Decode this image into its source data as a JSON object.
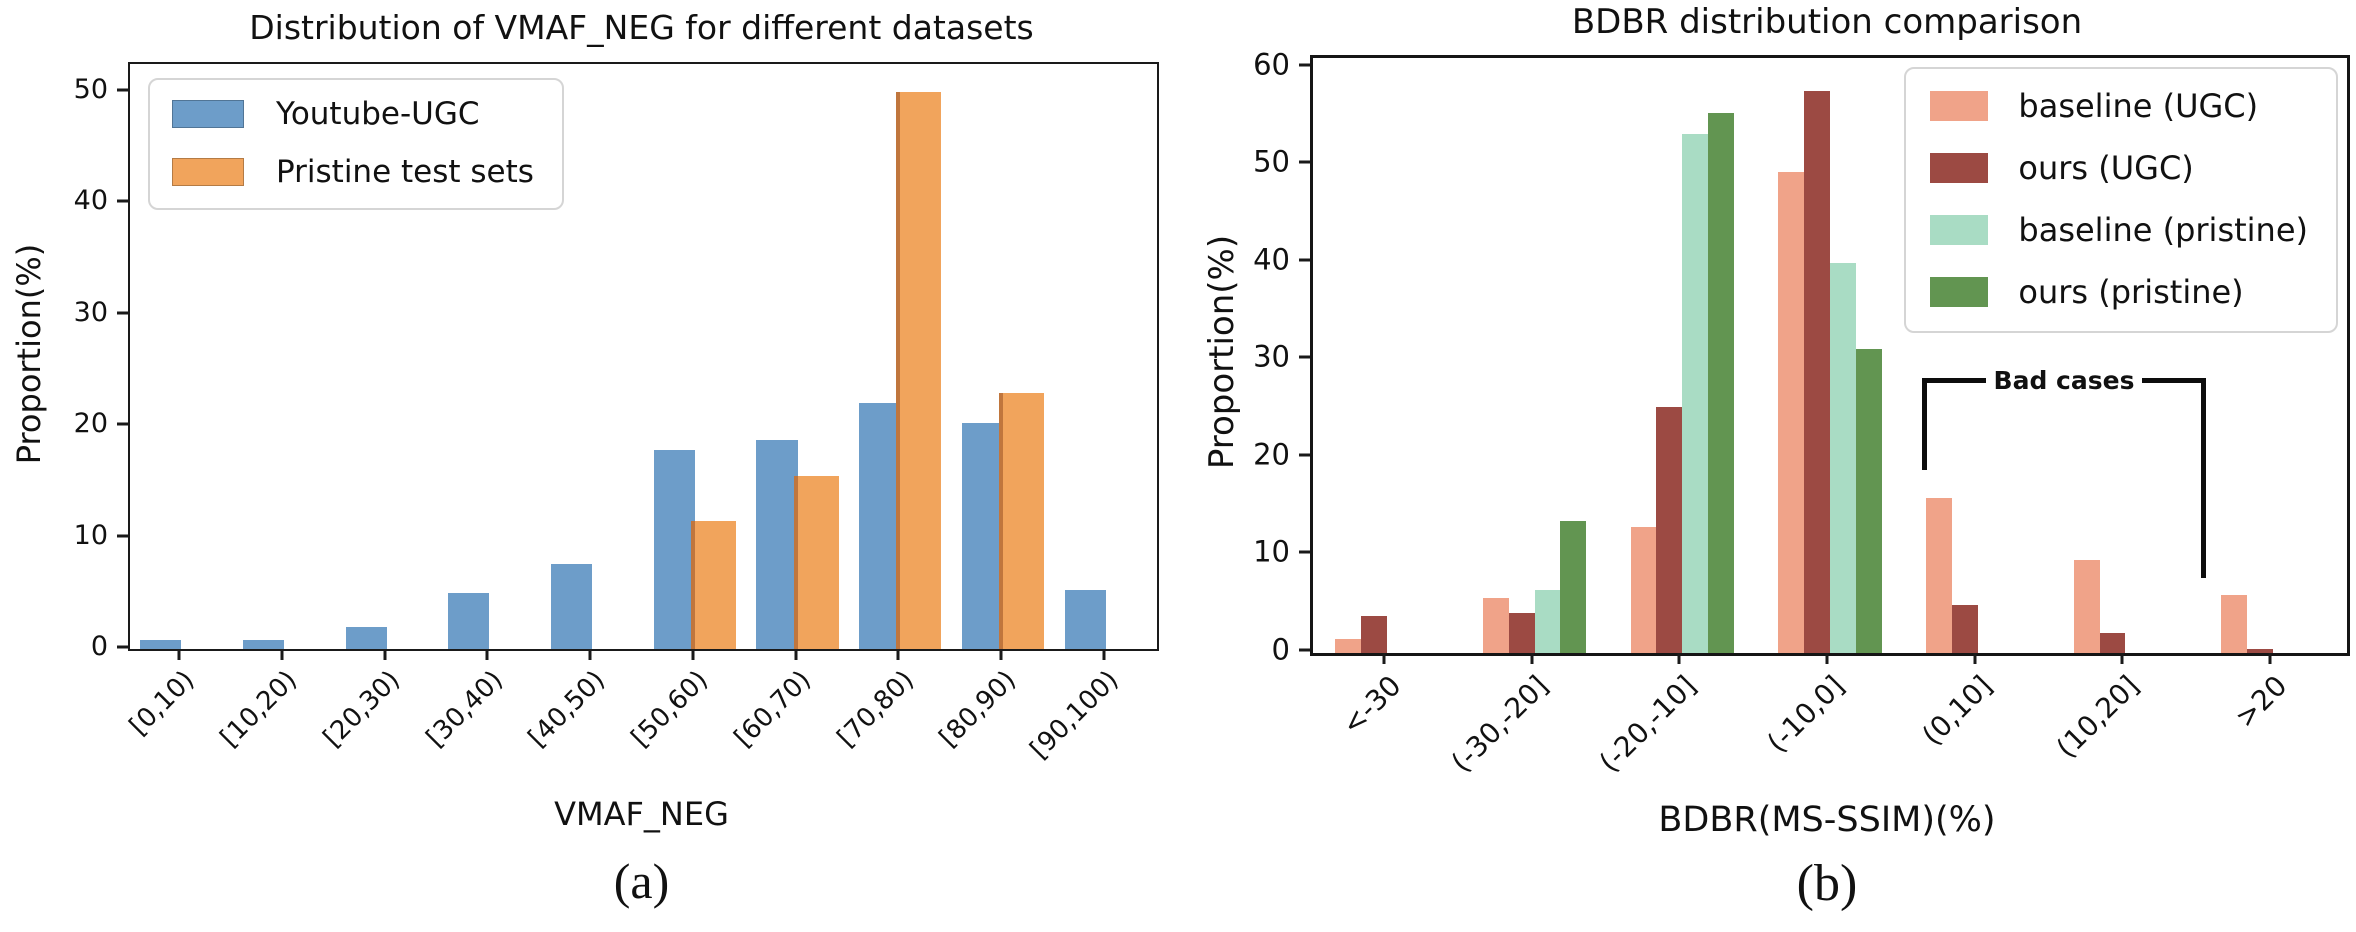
{
  "chart_data": [
    {
      "type": "bar",
      "title": "Distribution of VMAF_NEG for different datasets",
      "xlabel": "VMAF_NEG",
      "ylabel": "Proportion(%)",
      "caption": "(a)",
      "ylim": [
        0,
        52.5
      ],
      "yticks": [
        0,
        10,
        20,
        30,
        40,
        50
      ],
      "grid": false,
      "legend_position": "upper left",
      "categories": [
        "[0,10)",
        "[10,20)",
        "[20,30)",
        "[30,40)",
        "[40,50)",
        "[50,60)",
        "[60,70)",
        "[70,80)",
        "[80,90)",
        "[90,100)"
      ],
      "series": [
        {
          "name": "Youtube-UGC",
          "color": "#6d9dc9",
          "values": [
            0.8,
            0.8,
            2.0,
            5.0,
            7.6,
            17.9,
            18.8,
            22.1,
            20.3,
            5.3
          ]
        },
        {
          "name": "Pristine test sets",
          "color": "#f1a45c",
          "values": [
            0,
            0,
            0,
            0,
            0,
            11.5,
            15.5,
            50.0,
            23.0,
            0
          ]
        }
      ]
    },
    {
      "type": "bar",
      "title": "BDBR distribution comparison",
      "xlabel": "BDBR(MS-SSIM)(%)",
      "ylabel": "Proportion(%)",
      "caption": "(b)",
      "ylim": [
        0,
        61
      ],
      "yticks": [
        0,
        10,
        20,
        30,
        40,
        50,
        60
      ],
      "grid": false,
      "legend_position": "upper right",
      "annotation": {
        "label": "Bad cases",
        "spans": [
          "(0,10]",
          ">20"
        ]
      },
      "categories": [
        "<-30",
        "(-30,-20]",
        "(-20,-10]",
        "(-10,0]",
        "(0,10]",
        "(10,20]",
        ">20"
      ],
      "series": [
        {
          "name": "baseline (UGC)",
          "color": "#f0a389",
          "values": [
            1.4,
            5.6,
            12.9,
            49.3,
            15.9,
            9.5,
            5.9
          ]
        },
        {
          "name": "ours (UGC)",
          "color": "#9c4a43",
          "values": [
            3.8,
            4.1,
            25.2,
            57.6,
            4.9,
            2.1,
            0.4
          ]
        },
        {
          "name": "baseline (pristine)",
          "color": "#a9dcc4",
          "values": [
            0,
            6.5,
            53.2,
            40.0,
            0,
            0,
            0
          ]
        },
        {
          "name": "ours (pristine)",
          "color": "#629551",
          "values": [
            0,
            13.5,
            55.4,
            31.2,
            0,
            0,
            0
          ]
        }
      ]
    }
  ]
}
